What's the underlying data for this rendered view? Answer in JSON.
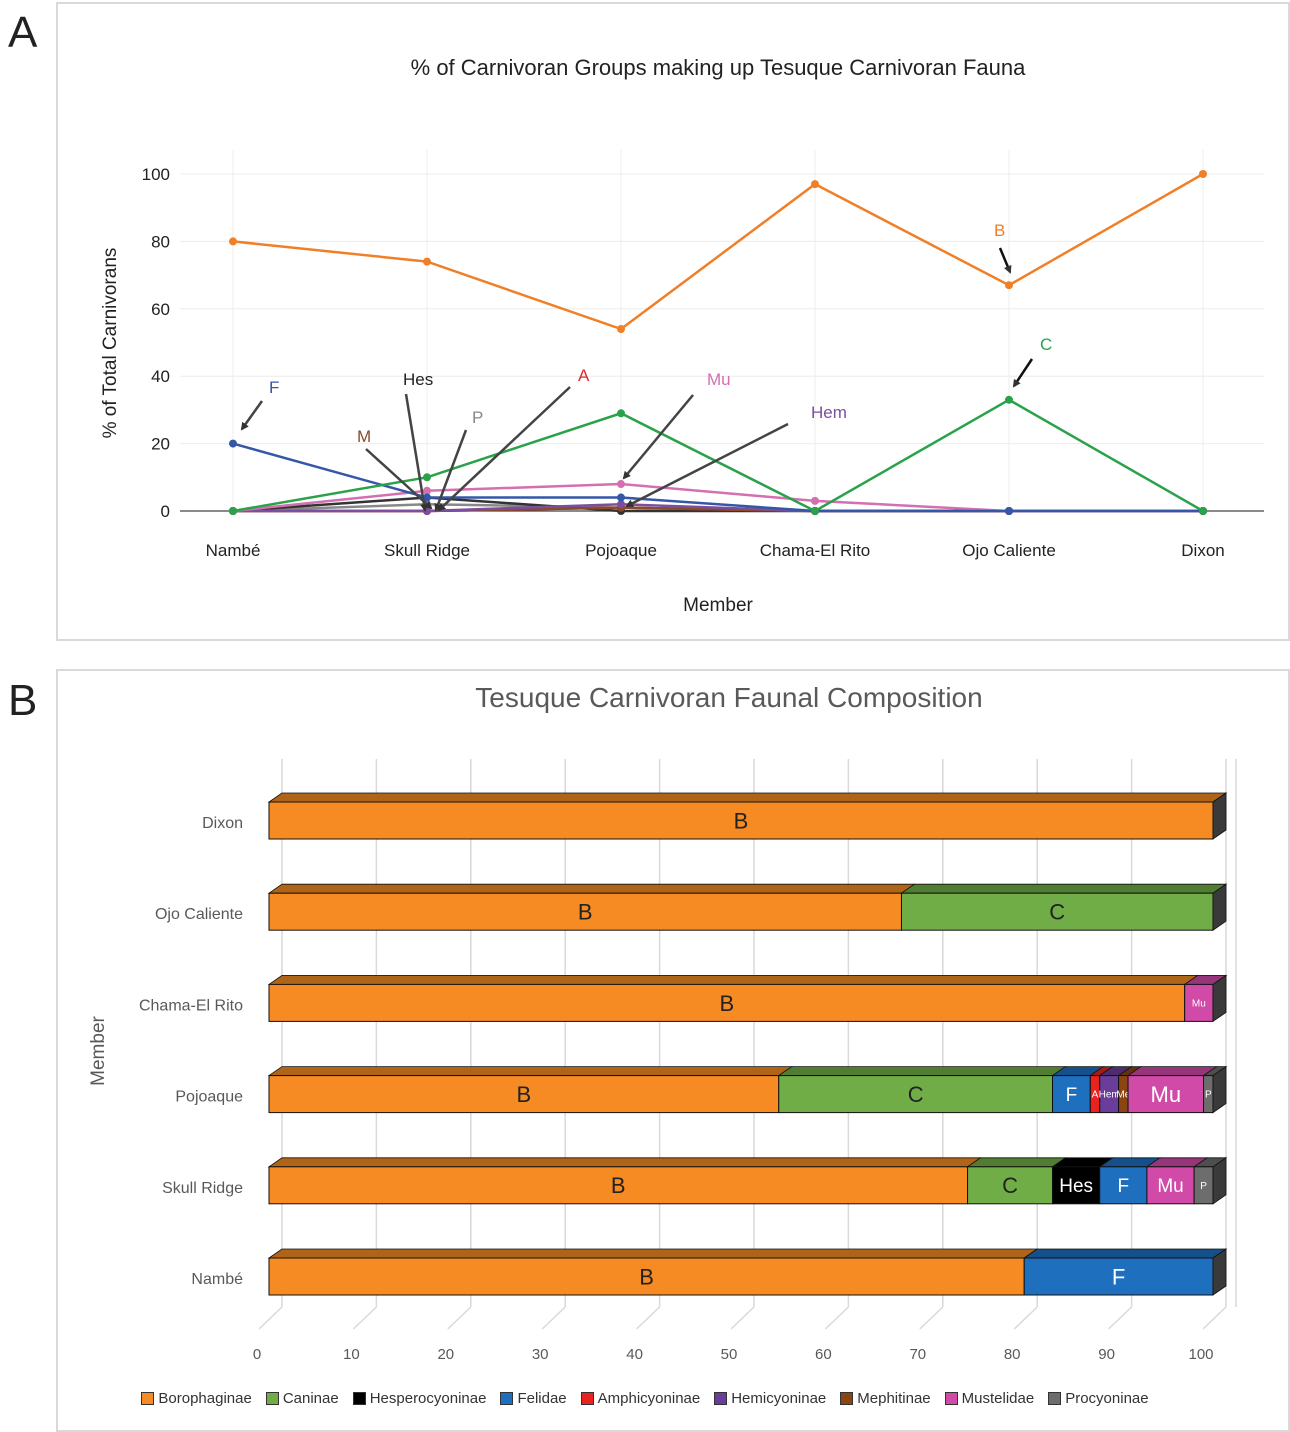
{
  "panels": {
    "a_letter": "A",
    "b_letter": "B"
  },
  "chart_data": [
    {
      "type": "line",
      "title": "% of Carnivoran Groups  making up Tesuque Carnivoran Fauna",
      "xlabel": "Member",
      "ylabel": "% of Total Carnivorans",
      "ylim": [
        0,
        100
      ],
      "yticks": [
        0,
        20,
        40,
        60,
        80,
        100
      ],
      "grid": true,
      "categories": [
        "Nambé",
        "Skull Ridge",
        "Pojoaque",
        "Chama-El Rito",
        "Ojo Caliente",
        "Dixon"
      ],
      "series": [
        {
          "name": "B",
          "color": "#f07f27",
          "values": [
            80,
            74,
            54,
            97,
            67,
            100
          ]
        },
        {
          "name": "C",
          "color": "#2aa24a",
          "values": [
            0,
            10,
            29,
            0,
            33,
            0
          ]
        },
        {
          "name": "F",
          "color": "#3557a8",
          "values": [
            20,
            4,
            4,
            0,
            0,
            0
          ]
        },
        {
          "name": "Mu",
          "color": "#d46fb0",
          "values": [
            0,
            6,
            8,
            3,
            0,
            0
          ]
        },
        {
          "name": "Hem",
          "color": "#7b4fa0",
          "values": [
            0,
            0,
            2,
            0,
            0,
            0
          ]
        },
        {
          "name": "M",
          "color": "#8b4a2b",
          "values": [
            0,
            0,
            1,
            0,
            0,
            0
          ]
        },
        {
          "name": "A",
          "color": "#e02a2a",
          "values": [
            0,
            0,
            1,
            0,
            0,
            0
          ]
        },
        {
          "name": "Hes",
          "color": "#333333",
          "values": [
            0,
            4,
            0,
            0,
            0,
            0
          ]
        },
        {
          "name": "P",
          "color": "#888888",
          "values": [
            0,
            2,
            1,
            0,
            0,
            0
          ]
        }
      ],
      "annotations": [
        {
          "text": "B",
          "color": "#f07f27",
          "target": "Ojo Caliente"
        },
        {
          "text": "C",
          "color": "#2aa24a",
          "target": "Ojo Caliente"
        },
        {
          "text": "F",
          "color": "#3557a8",
          "target": "Nambé"
        },
        {
          "text": "Hes",
          "color": "#222222",
          "target": "Skull Ridge"
        },
        {
          "text": "M",
          "color": "#8b4a2b",
          "target": "Skull Ridge"
        },
        {
          "text": "P",
          "color": "#888888",
          "target": "Skull Ridge"
        },
        {
          "text": "A",
          "color": "#e02a2a",
          "target": "Skull Ridge"
        },
        {
          "text": "Mu",
          "color": "#d46fb0",
          "target": "Pojoaque"
        },
        {
          "text": "Hem",
          "color": "#7b4fa0",
          "target": "Pojoaque"
        }
      ]
    },
    {
      "type": "bar",
      "orientation": "horizontal",
      "stacked": true,
      "title": "Tesuque Carnivoran Faunal Composition",
      "ylabel": "Member",
      "xlabel": "",
      "xlim": [
        0,
        100
      ],
      "xticks": [
        0,
        10,
        20,
        30,
        40,
        50,
        60,
        70,
        80,
        90,
        100
      ],
      "grid": true,
      "legend_position": "bottom",
      "categories": [
        "Dixon",
        "Ojo Caliente",
        "Chama-El Rito",
        "Pojoaque",
        "Skull Ridge",
        "Nambé"
      ],
      "series": [
        {
          "name": "Borophaginae",
          "abbr": "B",
          "color": "#f58b22",
          "values": [
            100,
            67,
            97,
            54,
            74,
            80
          ]
        },
        {
          "name": "Caninae",
          "abbr": "C",
          "color": "#70ad47",
          "values": [
            0,
            33,
            0,
            29,
            9,
            0
          ]
        },
        {
          "name": "Hesperocyoninae",
          "abbr": "Hes",
          "color": "#000000",
          "values": [
            0,
            0,
            0,
            0,
            5,
            0
          ]
        },
        {
          "name": "Felidae",
          "abbr": "F",
          "color": "#1f6fbf",
          "values": [
            0,
            0,
            0,
            4,
            5,
            20
          ]
        },
        {
          "name": "Amphicyoninae",
          "abbr": "A",
          "color": "#e8231f",
          "values": [
            0,
            0,
            0,
            1,
            0,
            0
          ]
        },
        {
          "name": "Hemicyoninae",
          "abbr": "Hem",
          "color": "#6a3d9a",
          "values": [
            0,
            0,
            0,
            2,
            0,
            0
          ]
        },
        {
          "name": "Mephitinae",
          "abbr": "Me",
          "color": "#8b4513",
          "values": [
            0,
            0,
            0,
            1,
            0,
            0
          ]
        },
        {
          "name": "Mustelidae",
          "abbr": "Mu",
          "color": "#d14aa8",
          "values": [
            0,
            0,
            3,
            8,
            5,
            0
          ]
        },
        {
          "name": "Procyoninae",
          "abbr": "P",
          "color": "#6d6d6d",
          "values": [
            0,
            0,
            0,
            1,
            2,
            0
          ]
        }
      ]
    }
  ]
}
